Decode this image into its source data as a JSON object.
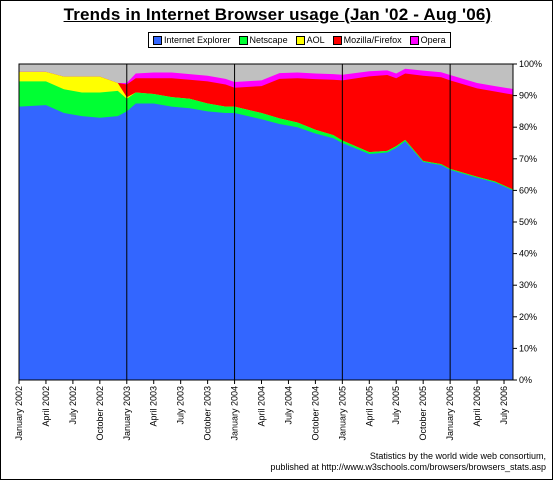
{
  "title": "Trends in Internet Browser usage (Jan '02 - Aug '06)",
  "credit": {
    "line1": "Statistics by the world wide web consortium,",
    "line2": "published at http://www.w3schools.com/browsers/browsers_stats.asp"
  },
  "chart_data": {
    "type": "area",
    "stacked": true,
    "ylim": [
      0,
      100
    ],
    "yticks": [
      "0%",
      "10%",
      "20%",
      "30%",
      "40%",
      "50%",
      "60%",
      "70%",
      "80%",
      "90%",
      "100%"
    ],
    "x_start": "2002-01",
    "x_end": "2006-08",
    "xticks": [
      "January 2002",
      "April 2002",
      "July 2002",
      "October 2002",
      "January 2003",
      "April 2003",
      "July 2003",
      "October 2003",
      "January 2004",
      "April 2004",
      "July 2004",
      "October 2004",
      "January 2005",
      "April 2005",
      "July 2005",
      "October 2005",
      "January 2006",
      "April 2006",
      "July 2006"
    ],
    "year_dividers": [
      "January 2003",
      "January 2004",
      "January 2005",
      "January 2006"
    ],
    "remainder_color": "#c0c0c0",
    "legend_position": "top",
    "x": [
      "2002-01",
      "2002-04",
      "2002-06",
      "2002-08",
      "2002-10",
      "2002-12",
      "2003-01",
      "2003-02",
      "2003-04",
      "2003-06",
      "2003-08",
      "2003-10",
      "2003-12",
      "2004-01",
      "2004-04",
      "2004-06",
      "2004-08",
      "2004-10",
      "2004-12",
      "2005-01",
      "2005-04",
      "2005-06",
      "2005-07",
      "2005-08",
      "2005-10",
      "2005-12",
      "2006-01",
      "2006-04",
      "2006-06",
      "2006-08"
    ],
    "series": [
      {
        "name": "Internet Explorer",
        "color": "#3366ff",
        "values": [
          86.5,
          87,
          84.5,
          83.5,
          83,
          83.5,
          85,
          87.5,
          87.5,
          86.5,
          86,
          85,
          84.5,
          84.5,
          82.5,
          81,
          80,
          78,
          76.5,
          75,
          71.5,
          72,
          73.5,
          75.5,
          69,
          68,
          66.5,
          64,
          62.5,
          60
        ]
      },
      {
        "name": "Netscape",
        "color": "#00ff33",
        "values": [
          8,
          7.5,
          7.5,
          7.5,
          8,
          8,
          4,
          3.5,
          3,
          3,
          3,
          2.5,
          2,
          2,
          2,
          1.8,
          1.5,
          1.2,
          1,
          0.8,
          0.6,
          0.5,
          0.5,
          0.5,
          0.3,
          0.3,
          0.3,
          0.3,
          0.3,
          0.3
        ]
      },
      {
        "name": "AOL",
        "color": "#ffff00",
        "values": [
          3,
          3,
          4,
          5,
          5,
          2.5,
          0.5,
          0,
          0,
          0,
          0,
          0,
          0,
          0,
          0,
          0,
          0,
          0,
          0,
          0,
          0,
          0,
          0,
          0,
          0,
          0,
          0,
          0,
          0,
          0
        ]
      },
      {
        "name": "Mozilla/Firefox",
        "color": "#ff0000",
        "values": [
          0,
          0,
          0,
          0,
          0,
          0,
          4,
          4.5,
          5,
          6,
          6,
          7,
          7,
          6,
          8.5,
          12.5,
          14,
          16,
          17.5,
          19,
          24,
          24,
          21.5,
          21,
          27,
          27.5,
          28,
          28,
          28.5,
          30
        ]
      },
      {
        "name": "Opera",
        "color": "#ff00ff",
        "values": [
          0,
          0,
          0,
          0,
          0,
          0,
          0.5,
          1.5,
          1.8,
          1.8,
          1.8,
          1.8,
          1.8,
          1.8,
          1.8,
          1.8,
          1.8,
          1.8,
          1.8,
          1.8,
          1.6,
          1.5,
          1.5,
          1.5,
          1.6,
          1.6,
          1.7,
          1.7,
          1.7,
          1.8
        ]
      }
    ]
  }
}
